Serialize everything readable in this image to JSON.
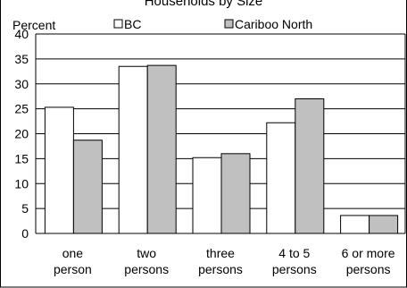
{
  "chart_data": {
    "type": "bar",
    "title": "Households by Size",
    "ylabel": "Percent",
    "xlabel": "",
    "ylim": [
      0,
      40
    ],
    "yticks": [
      0,
      5,
      10,
      15,
      20,
      25,
      30,
      35,
      40
    ],
    "grid": true,
    "legend_position": "top",
    "categories": [
      [
        "one",
        "person"
      ],
      [
        "two",
        "persons"
      ],
      [
        "three",
        "persons"
      ],
      [
        "4 to 5",
        "persons"
      ],
      [
        "6 or more",
        "persons"
      ]
    ],
    "series": [
      {
        "name": "BC",
        "color": "#ffffff",
        "values": [
          25.3,
          33.5,
          15.2,
          22.2,
          3.6
        ]
      },
      {
        "name": "Cariboo North",
        "color": "#c0c0c0",
        "values": [
          18.7,
          33.7,
          16.0,
          27.0,
          3.6
        ]
      }
    ]
  }
}
